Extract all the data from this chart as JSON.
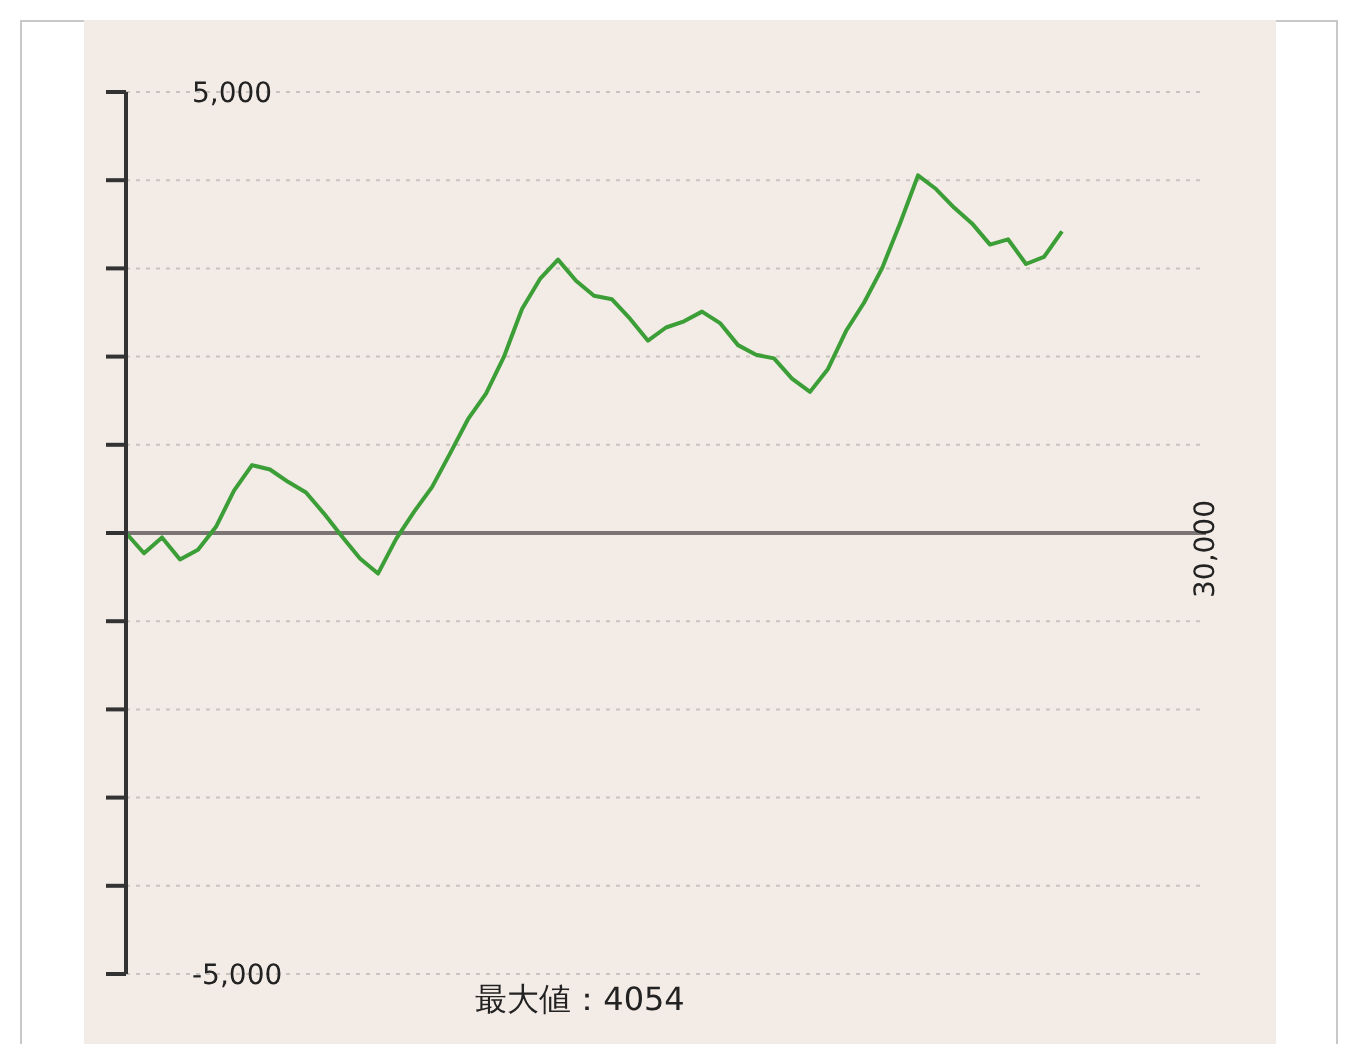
{
  "chart_data": {
    "type": "line",
    "categories": [
      null,
      null,
      null,
      null,
      null,
      null,
      null,
      null,
      null,
      null,
      null,
      null,
      null,
      null,
      null,
      null,
      null,
      null,
      null,
      null,
      null,
      null,
      null,
      null,
      null,
      null,
      null,
      null,
      null,
      null,
      null,
      null,
      null,
      null,
      null,
      null,
      null,
      null,
      null,
      null,
      null,
      null,
      null,
      null,
      null,
      null,
      null,
      null,
      null,
      null,
      null,
      null,
      null,
      null,
      null,
      null,
      null,
      null,
      null,
      null,
      null
    ],
    "series": [
      {
        "color": "#3c9e36",
        "values": [
          0,
          -230,
          -50,
          -300,
          -190,
          70,
          480,
          770,
          720,
          580,
          460,
          220,
          -40,
          -290,
          -460,
          -70,
          240,
          520,
          900,
          1290,
          1580,
          2000,
          2540,
          2880,
          3100,
          2860,
          2690,
          2650,
          2430,
          2180,
          2330,
          2400,
          2510,
          2380,
          2130,
          2020,
          1980,
          1750,
          1600,
          1860,
          2290,
          2610,
          3000,
          3510,
          4054,
          3900,
          3690,
          3510,
          3270,
          3330,
          3050,
          3130,
          3420,
          null,
          null,
          null,
          null,
          null,
          null,
          null,
          null
        ]
      }
    ],
    "ylim": [
      -5000,
      5000
    ],
    "yticks": [
      {
        "value": -5000,
        "label": "-5,000"
      },
      {
        "value": -4000,
        "label": null
      },
      {
        "value": -3000,
        "label": null
      },
      {
        "value": -2000,
        "label": null
      },
      {
        "value": -1000,
        "label": null
      },
      {
        "value": 0,
        "label": null
      },
      {
        "value": 1000,
        "label": null
      },
      {
        "value": 2000,
        "label": null
      },
      {
        "value": 3000,
        "label": null
      },
      {
        "value": 4000,
        "label": null
      },
      {
        "value": 5000,
        "label": "5,000"
      }
    ],
    "grid": "y",
    "marker": "none",
    "line_style": "solid",
    "ref_lines": [
      {
        "axis": "y",
        "value": 0,
        "color": "#7a7474"
      }
    ],
    "annotations": [
      "最大値：4054",
      "30,000"
    ]
  }
}
